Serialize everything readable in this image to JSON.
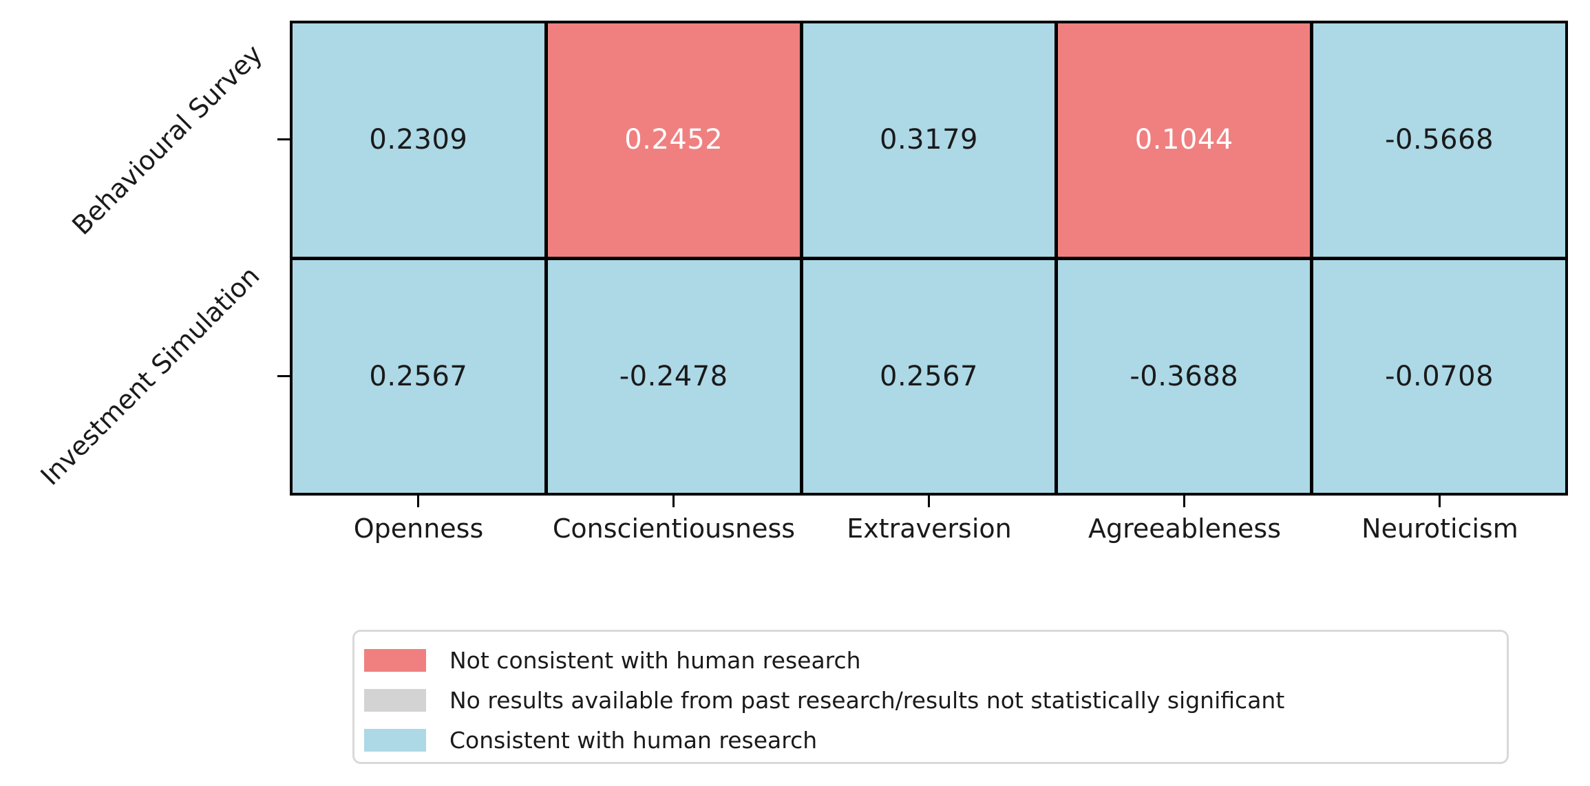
{
  "chart_data": {
    "type": "heatmap",
    "title": "",
    "xlabel": "",
    "ylabel": "",
    "grid": false,
    "x_categories": [
      "Openness",
      "Conscientiousness",
      "Extraversion",
      "Agreeableness",
      "Neuroticism"
    ],
    "y_categories": [
      "Behavioural Survey",
      "Investment Simulation"
    ],
    "values": [
      [
        0.2309,
        0.2452,
        0.3179,
        0.1044,
        -0.5668
      ],
      [
        0.2567,
        -0.2478,
        0.2567,
        -0.3688,
        -0.0708
      ]
    ],
    "cells": [
      {
        "row": 0,
        "col": 0,
        "text": "0.2309",
        "status": "consistent"
      },
      {
        "row": 0,
        "col": 1,
        "text": "0.2452",
        "status": "not_consistent"
      },
      {
        "row": 0,
        "col": 2,
        "text": "0.3179",
        "status": "consistent"
      },
      {
        "row": 0,
        "col": 3,
        "text": "0.1044",
        "status": "not_consistent"
      },
      {
        "row": 0,
        "col": 4,
        "text": "-0.5668",
        "status": "consistent"
      },
      {
        "row": 1,
        "col": 0,
        "text": "0.2567",
        "status": "consistent"
      },
      {
        "row": 1,
        "col": 1,
        "text": "-0.2478",
        "status": "consistent"
      },
      {
        "row": 1,
        "col": 2,
        "text": "0.2567",
        "status": "consistent"
      },
      {
        "row": 1,
        "col": 3,
        "text": "-0.3688",
        "status": "consistent"
      },
      {
        "row": 1,
        "col": 4,
        "text": "-0.0708",
        "status": "consistent"
      }
    ],
    "colors": {
      "not_consistent": "#F08080",
      "no_results": "#D3D3D3",
      "consistent": "#ADD8E6",
      "cell_text_dark": "#1A1A1A",
      "cell_text_light": "#FFFFFF",
      "grid_line": "#000000"
    },
    "legend": {
      "position": "bottom",
      "items": [
        {
          "label": "Not consistent with human research",
          "color_key": "not_consistent"
        },
        {
          "label": "No results available from past research/results not statistically significant",
          "color_key": "no_results"
        },
        {
          "label": "Consistent with human research",
          "color_key": "consistent"
        }
      ]
    }
  }
}
